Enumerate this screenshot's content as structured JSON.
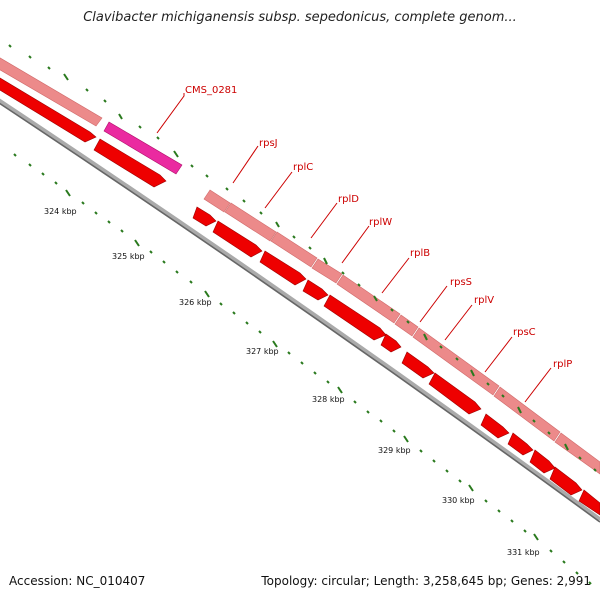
{
  "title": "Clavibacter michiganensis subsp. sepedonicus, complete genom...",
  "accession": "Accession: NC_010407",
  "summary": "Topology: circular; Length: 3,258,645 bp; Genes: 2,991",
  "colors": {
    "tick": "#2a7a1e",
    "cds_feature": "#ee0000",
    "gene_feature": "#ec8a8a",
    "highlight_feature": "#ea2aa0",
    "backbone": "#888888",
    "label": "#cc0000"
  },
  "scale_labels": [
    "324 kbp",
    "325 kbp",
    "326 kbp",
    "327 kbp",
    "328 kbp",
    "329 kbp",
    "330 kbp",
    "331 kbp"
  ],
  "gene_labels": [
    "CMS_0281",
    "rpsJ",
    "rplC",
    "rplD",
    "rplW",
    "rplB",
    "rpsS",
    "rplV",
    "rpsC",
    "rplP"
  ]
}
